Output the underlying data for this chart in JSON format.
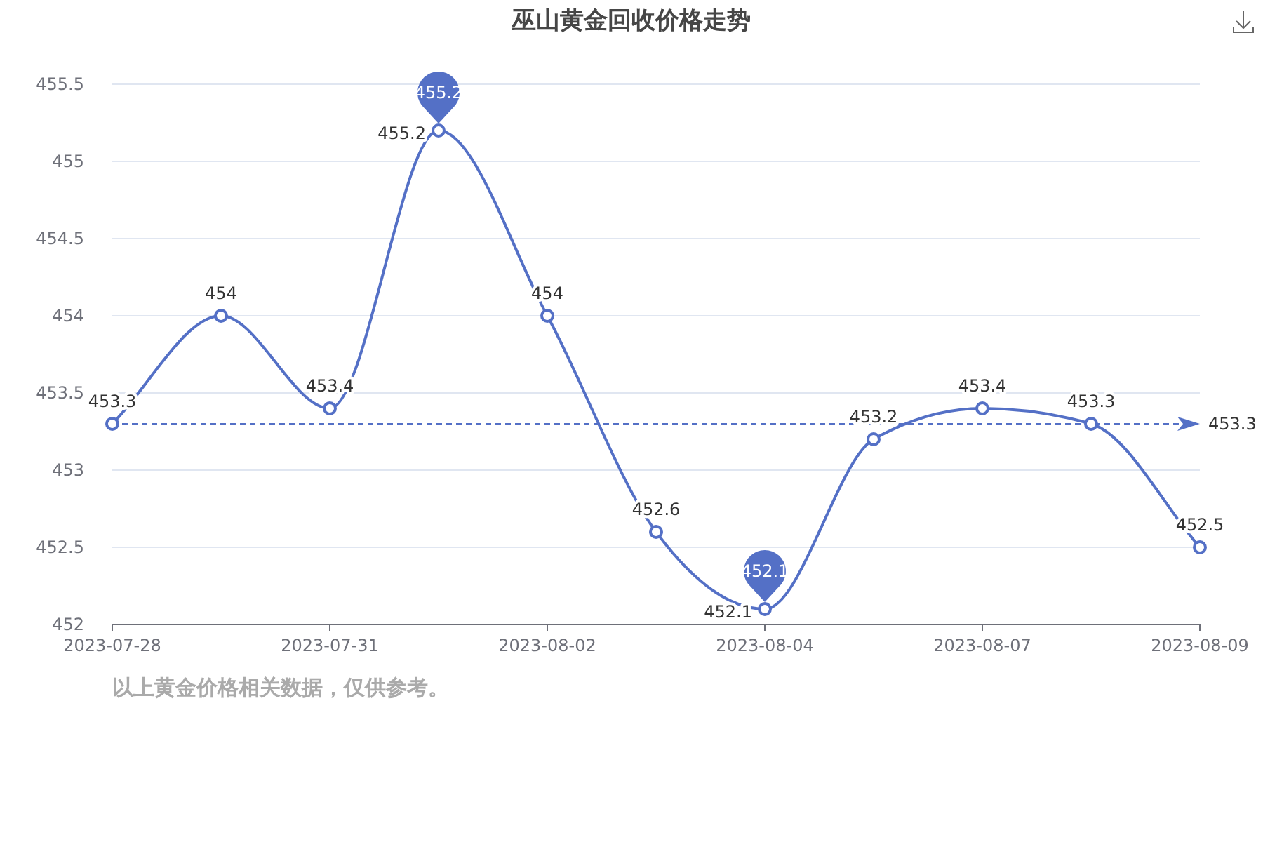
{
  "chart_data": {
    "type": "line",
    "title": "巫山黄金回收价格走势",
    "categories": [
      "2023-07-28",
      null,
      "2023-07-31",
      null,
      "2023-08-02",
      null,
      "2023-08-04",
      null,
      "2023-08-07",
      null,
      "2023-08-09"
    ],
    "values": [
      453.3,
      454,
      453.4,
      455.2,
      454,
      452.6,
      452.1,
      453.2,
      453.4,
      453.3,
      452.5
    ],
    "color": "#5470c6",
    "ylim": [
      452,
      455.5
    ],
    "yticks": [
      452,
      452.5,
      453,
      453.5,
      454,
      454.5,
      455,
      455.5
    ],
    "grid": "y",
    "marker": "circle",
    "data_labels": true,
    "ref_lines": [
      {
        "axis": "y",
        "value": 453.3,
        "label": "453.3",
        "line_style": "dashed"
      }
    ],
    "annotations": [
      {
        "text": "455.2",
        "y": 455.2
      },
      {
        "text": "452.1",
        "y": 452.1
      },
      "以上黄金价格相关数据，仅供参考。"
    ]
  }
}
